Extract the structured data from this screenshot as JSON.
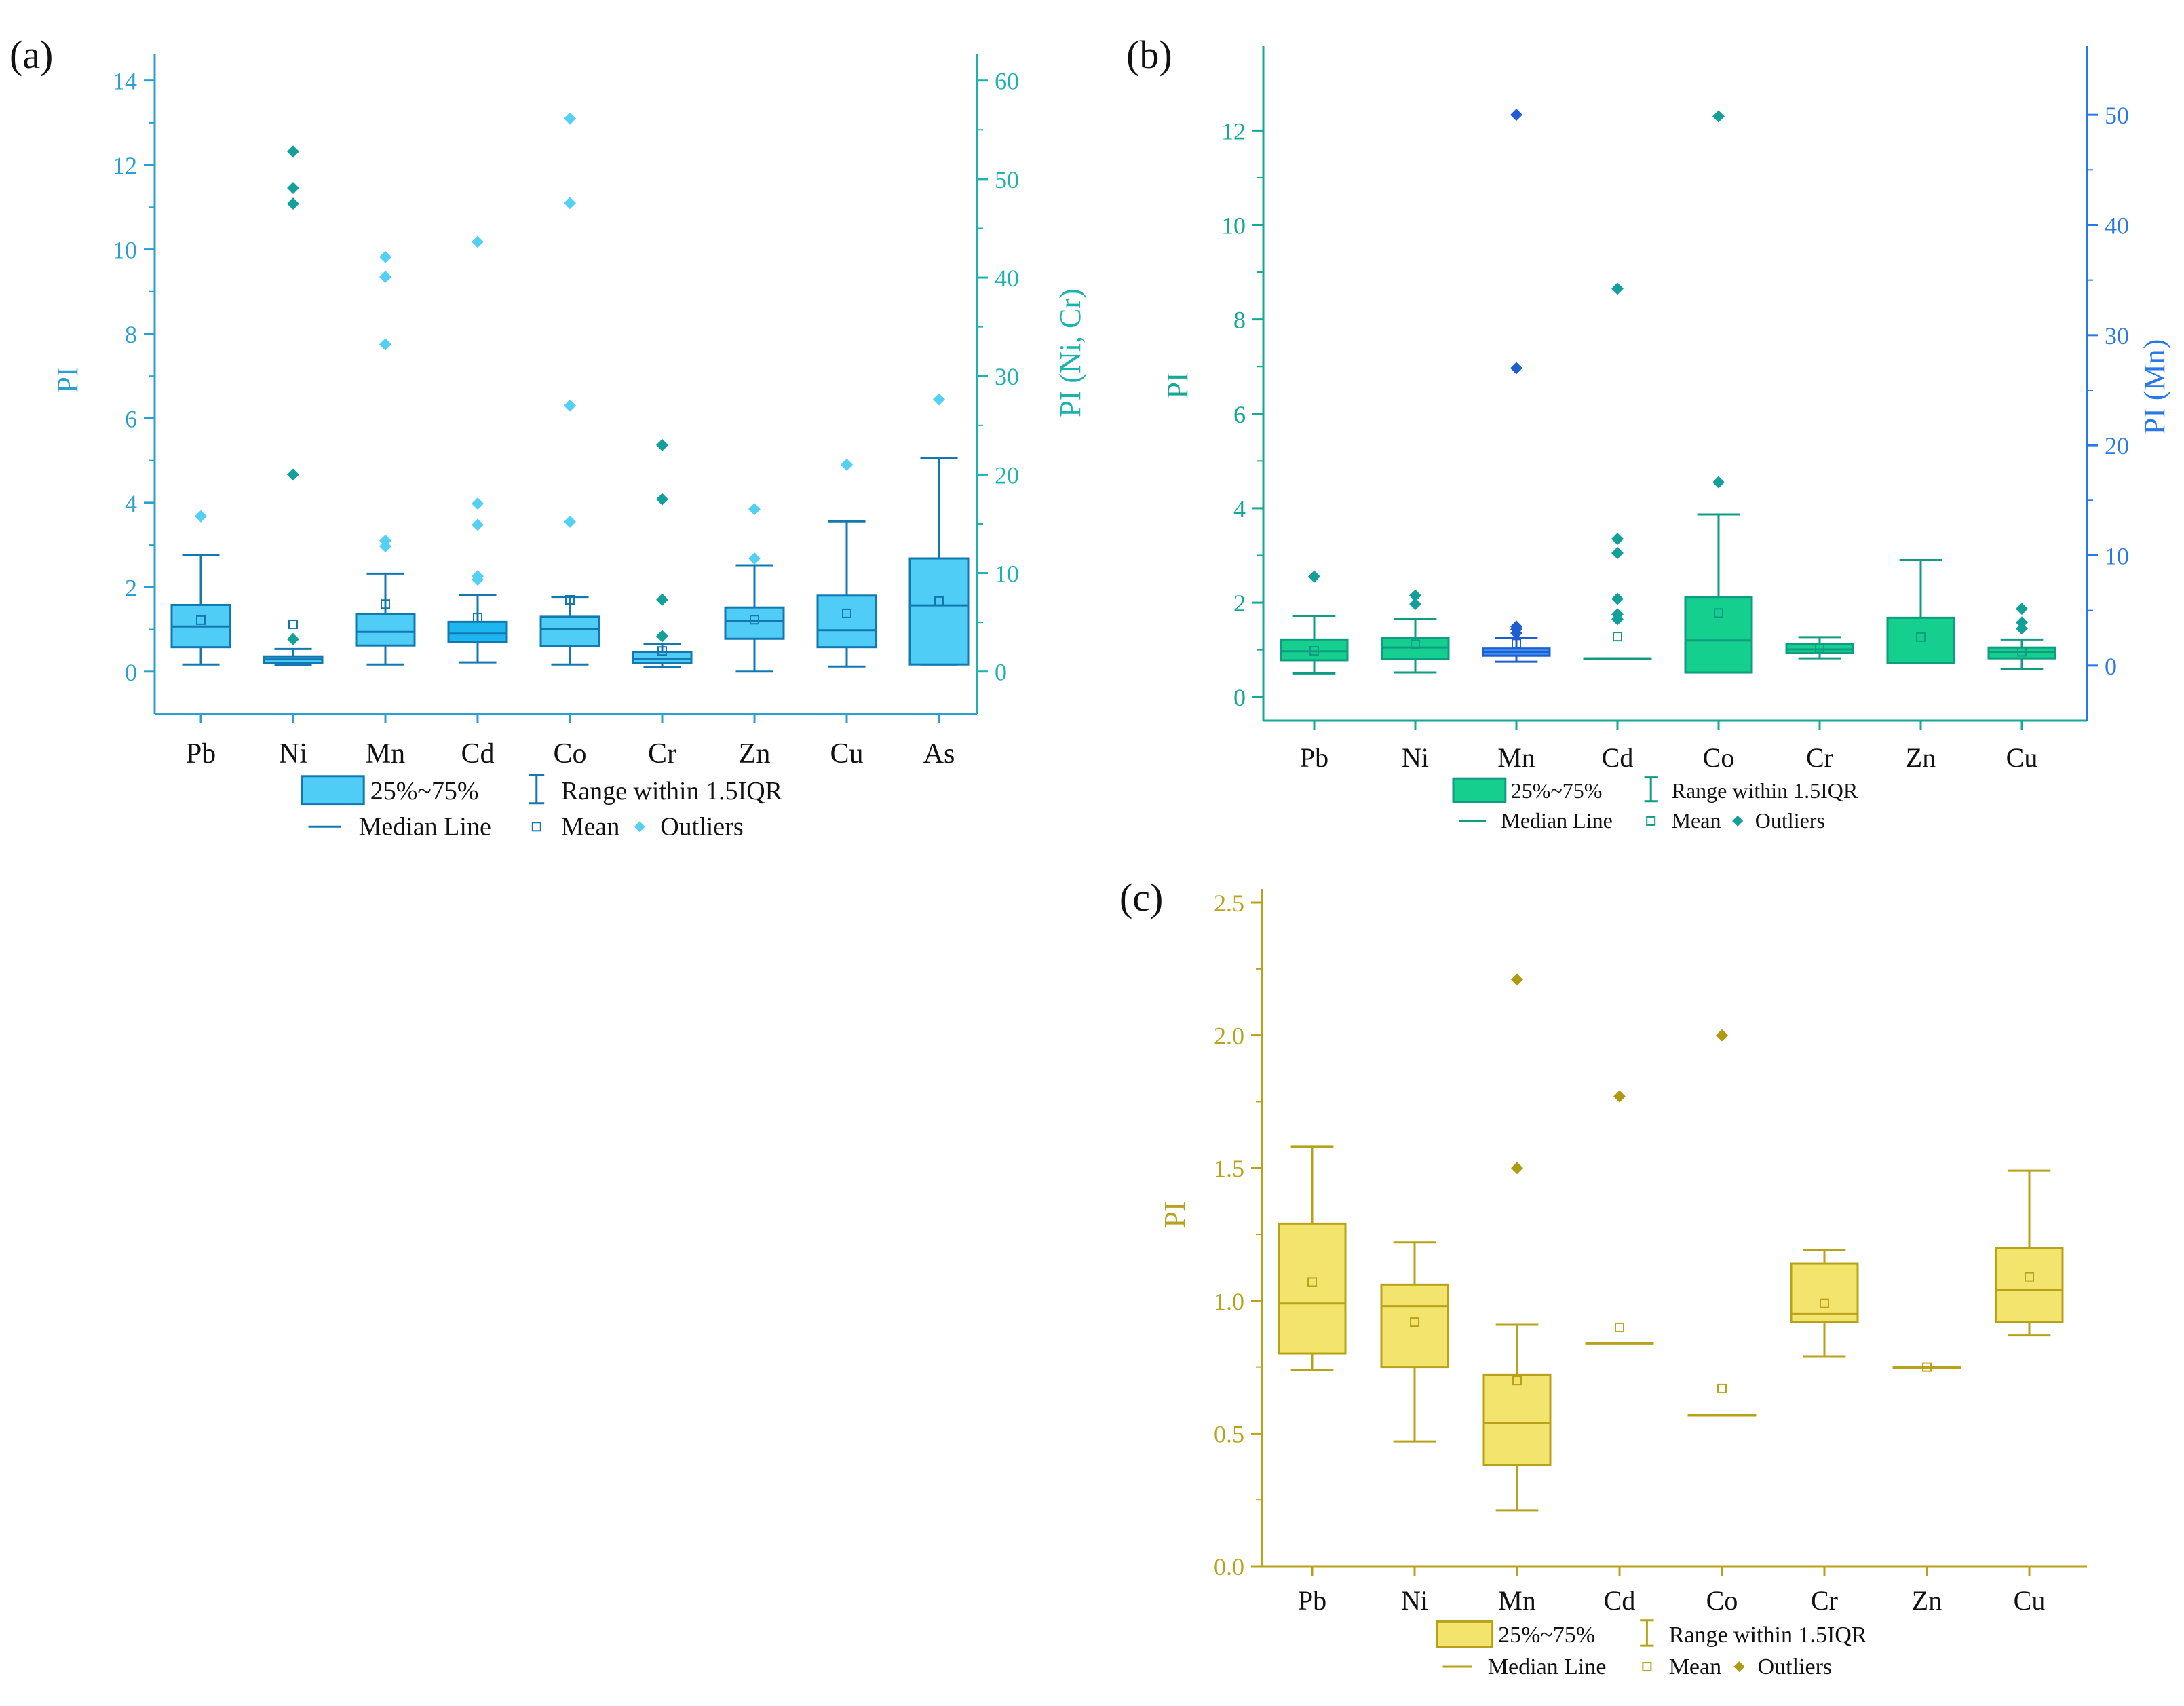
{
  "colors": {
    "a_box": "#4fcdf7",
    "a_edge": "#1278b0",
    "a_axis_left": "#2c9fd0",
    "a_axis_right": "#1bb3b0",
    "a_outlier": "#55d0f5",
    "a_outlier_dark": "#14a09a",
    "b_box": "#14cf8e",
    "b_edge": "#0f9c82",
    "b_axis_left": "#16a894",
    "b_axis_right": "#2878e8",
    "b_mn_box": "#3d8ff0",
    "b_mn_edge": "#1f5ed0",
    "b_outlier": "#14a09a",
    "b_outlier_mn": "#1f5ed0",
    "c_box": "#f2e46c",
    "c_edge": "#b8a21a",
    "c_axis": "#b8a21a",
    "c_outlier": "#b09a10"
  },
  "chart_data": [
    {
      "id": "a",
      "type": "box",
      "panel_label": "(a)",
      "ylabel": "PI",
      "y2label": "PI (Ni, Cr)",
      "ylim": [
        -1,
        14.3
      ],
      "y_ticks": [
        0,
        2,
        4,
        6,
        8,
        10,
        12,
        14
      ],
      "y2lim": [
        -4.29,
        61.29
      ],
      "y2_ticks": [
        0,
        10,
        20,
        30,
        40,
        50,
        60
      ],
      "categories": [
        "Pb",
        "Ni",
        "Mn",
        "Cd",
        "Co",
        "Cr",
        "Zn",
        "Cu",
        "As"
      ],
      "boxes": [
        {
          "name": "Pb",
          "axis": "left",
          "q1": 0.58,
          "median": 1.07,
          "q3": 1.58,
          "whisker_low": 0.17,
          "whisker_high": 2.76,
          "mean": 1.22,
          "outliers": [
            3.68
          ]
        },
        {
          "name": "Ni",
          "axis": "right",
          "q1": 0.9,
          "median": 1.25,
          "q3": 1.55,
          "whisker_low": 0.7,
          "whisker_high": 2.3,
          "mean": 4.8,
          "outliers": [
            3.3,
            20,
            47.5,
            49.1,
            52.8
          ]
        },
        {
          "name": "Mn",
          "axis": "left",
          "q1": 0.62,
          "median": 0.94,
          "q3": 1.36,
          "whisker_low": 0.17,
          "whisker_high": 2.32,
          "mean": 1.6,
          "outliers": [
            2.97,
            3.1,
            7.75,
            9.35,
            9.82
          ]
        },
        {
          "name": "Cd",
          "axis": "left",
          "q1": 0.7,
          "median": 0.9,
          "q3": 1.18,
          "whisker_low": 0.22,
          "whisker_high": 1.82,
          "mean": 1.28,
          "outliers": [
            2.18,
            2.26,
            3.48,
            3.98,
            10.18
          ]
        },
        {
          "name": "Co",
          "axis": "left",
          "q1": 0.6,
          "median": 1.0,
          "q3": 1.3,
          "whisker_low": 0.17,
          "whisker_high": 1.77,
          "mean": 1.7,
          "outliers": [
            3.55,
            6.3,
            11.1,
            13.1
          ]
        },
        {
          "name": "Cr",
          "axis": "right",
          "q1": 0.9,
          "median": 1.3,
          "q3": 2.0,
          "whisker_low": 0.5,
          "whisker_high": 2.8,
          "mean": 2.1,
          "outliers": [
            3.6,
            7.3,
            17.5,
            23.0
          ]
        },
        {
          "name": "Zn",
          "axis": "left",
          "q1": 0.78,
          "median": 1.2,
          "q3": 1.52,
          "whisker_low": 0.0,
          "whisker_high": 2.52,
          "mean": 1.23,
          "outliers": [
            2.68,
            3.85
          ]
        },
        {
          "name": "Cu",
          "axis": "left",
          "q1": 0.58,
          "median": 0.98,
          "q3": 1.8,
          "whisker_low": 0.12,
          "whisker_high": 3.56,
          "mean": 1.38,
          "outliers": [
            4.9
          ]
        },
        {
          "name": "As",
          "axis": "left",
          "q1": 0.17,
          "median": 1.57,
          "q3": 2.68,
          "whisker_low": 0.17,
          "whisker_high": 5.06,
          "mean": 1.67,
          "outliers": [
            6.45
          ]
        }
      ],
      "legend": {
        "box": "25%~75%",
        "range": "Range within 1.5IQR",
        "median": "Median Line",
        "mean": "Mean",
        "outliers": "Outliers"
      }
    },
    {
      "id": "b",
      "type": "box",
      "panel_label": "(b)",
      "ylabel": "PI",
      "y2label": "PI (Mn)",
      "ylim": [
        -0.5,
        13.5
      ],
      "y_ticks": [
        0,
        2,
        4,
        6,
        8,
        10,
        12
      ],
      "y2lim": [
        -5,
        55
      ],
      "y2_ticks": [
        0,
        10,
        20,
        30,
        40,
        50
      ],
      "categories": [
        "Pb",
        "Ni",
        "Mn",
        "Cd",
        "Co",
        "Cr",
        "Zn",
        "Cu"
      ],
      "boxes": [
        {
          "name": "Pb",
          "axis": "left",
          "q1": 0.78,
          "median": 0.97,
          "q3": 1.22,
          "whisker_low": 0.5,
          "whisker_high": 1.72,
          "mean": 0.98,
          "outliers": [
            2.55
          ]
        },
        {
          "name": "Ni",
          "axis": "left",
          "q1": 0.8,
          "median": 1.05,
          "q3": 1.25,
          "whisker_low": 0.52,
          "whisker_high": 1.65,
          "mean": 1.12,
          "outliers": [
            1.97,
            2.15
          ]
        },
        {
          "name": "Mn",
          "axis": "right",
          "q1": 0.9,
          "median": 1.2,
          "q3": 1.55,
          "whisker_low": 0.35,
          "whisker_high": 2.55,
          "mean": 2.0,
          "outliers": [
            2.95,
            3.3,
            3.55,
            27,
            50
          ]
        },
        {
          "name": "Cd",
          "axis": "left",
          "q1": 0.82,
          "median": 0.82,
          "q3": 0.82,
          "whisker_low": 0.82,
          "whisker_high": 0.82,
          "mean": 1.28,
          "outliers": [
            1.65,
            1.75,
            2.08,
            3.05,
            3.35,
            8.65
          ]
        },
        {
          "name": "Co",
          "axis": "left",
          "q1": 0.52,
          "median": 1.2,
          "q3": 2.12,
          "whisker_low": 0.52,
          "whisker_high": 3.87,
          "mean": 1.78,
          "outliers": [
            4.55,
            12.3
          ]
        },
        {
          "name": "Cr",
          "axis": "left",
          "q1": 0.93,
          "median": 1.01,
          "q3": 1.12,
          "whisker_low": 0.82,
          "whisker_high": 1.27,
          "mean": 1.03,
          "outliers": []
        },
        {
          "name": "Zn",
          "axis": "left",
          "q1": 0.72,
          "median": 0.72,
          "q3": 1.68,
          "whisker_low": 0.72,
          "whisker_high": 2.9,
          "mean": 1.27,
          "outliers": []
        },
        {
          "name": "Cu",
          "axis": "left",
          "q1": 0.82,
          "median": 0.95,
          "q3": 1.05,
          "whisker_low": 0.6,
          "whisker_high": 1.22,
          "mean": 0.96,
          "outliers": [
            1.45,
            1.58,
            1.87
          ]
        }
      ],
      "legend": {
        "box": "25%~75%",
        "range": "Range within 1.5IQR",
        "median": "Median Line",
        "mean": "Mean",
        "outliers": "Outliers"
      }
    },
    {
      "id": "c",
      "type": "box",
      "panel_label": "(c)",
      "ylabel": "PI",
      "ylim": [
        0,
        2.5
      ],
      "y_ticks": [
        "0.0",
        "0.5",
        "1.0",
        "1.5",
        "2.0",
        "2.5"
      ],
      "categories": [
        "Pb",
        "Ni",
        "Mn",
        "Cd",
        "Co",
        "Cr",
        "Zn",
        "Cu"
      ],
      "boxes": [
        {
          "name": "Pb",
          "q1": 0.8,
          "median": 0.99,
          "q3": 1.29,
          "whisker_low": 0.74,
          "whisker_high": 1.58,
          "mean": 1.07,
          "outliers": []
        },
        {
          "name": "Ni",
          "q1": 0.75,
          "median": 0.98,
          "q3": 1.06,
          "whisker_low": 0.47,
          "whisker_high": 1.22,
          "mean": 0.92,
          "outliers": []
        },
        {
          "name": "Mn",
          "q1": 0.38,
          "median": 0.54,
          "q3": 0.72,
          "whisker_low": 0.21,
          "whisker_high": 0.91,
          "mean": 0.7,
          "outliers": [
            1.5,
            2.21
          ]
        },
        {
          "name": "Cd",
          "q1": 0.84,
          "median": 0.84,
          "q3": 0.84,
          "whisker_low": 0.84,
          "whisker_high": 0.84,
          "mean": 0.9,
          "outliers": [
            1.77
          ]
        },
        {
          "name": "Co",
          "q1": 0.57,
          "median": 0.57,
          "q3": 0.57,
          "whisker_low": 0.57,
          "whisker_high": 0.57,
          "mean": 0.67,
          "outliers": [
            2.0
          ]
        },
        {
          "name": "Cr",
          "q1": 0.92,
          "median": 0.95,
          "q3": 1.14,
          "whisker_low": 0.79,
          "whisker_high": 1.19,
          "mean": 0.99,
          "outliers": []
        },
        {
          "name": "Zn",
          "q1": 0.75,
          "median": 0.75,
          "q3": 0.75,
          "whisker_low": 0.75,
          "whisker_high": 0.75,
          "mean": 0.75,
          "outliers": []
        },
        {
          "name": "Cu",
          "q1": 0.92,
          "median": 1.04,
          "q3": 1.2,
          "whisker_low": 0.87,
          "whisker_high": 1.49,
          "mean": 1.09,
          "outliers": []
        }
      ],
      "legend": {
        "box": "25%~75%",
        "range": "Range within 1.5IQR",
        "median": "Median Line",
        "mean": "Mean",
        "outliers": "Outliers"
      }
    }
  ]
}
